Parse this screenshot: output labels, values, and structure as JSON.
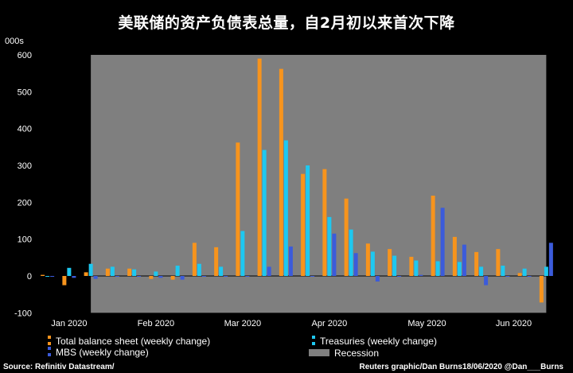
{
  "title": "美联储的资产负债表总量，自2月初以来首次下降",
  "unit_label": "000s",
  "source": "Source: Refinitiv Datastream/",
  "credit": "Reuters graphic/Dan Burns18/06/2020 @Dan___Burns",
  "legend": {
    "total": "Total balance sheet (weekly change)",
    "treasuries": "Treasuries (weekly change)",
    "mbs": "MBS (weekly change)",
    "recession": "Recession"
  },
  "colors": {
    "total": "#f7941d",
    "treasuries": "#1ec8f0",
    "mbs": "#3b5bdb",
    "recession": "#7f7f7f",
    "background": "#000000"
  },
  "chart_data": {
    "type": "bar",
    "ylim": [
      -100,
      600
    ],
    "yticks": [
      -100,
      0,
      100,
      200,
      300,
      400,
      500,
      600
    ],
    "xlabels": [
      "Jan 2020",
      "Feb 2020",
      "Mar 2020",
      "Apr 2020",
      "May 2020",
      "Jun 2020"
    ],
    "xlabel_weeks": [
      1.5,
      5.5,
      9.5,
      13.5,
      18,
      22
    ],
    "recession_weeks": [
      2.5,
      23.5
    ],
    "weeks": 24,
    "series": [
      {
        "name": "Total balance sheet (weekly change)",
        "key": "total",
        "values": [
          3,
          -25,
          10,
          20,
          20,
          -8,
          -10,
          90,
          78,
          362,
          590,
          562,
          277,
          290,
          210,
          88,
          73,
          52,
          218,
          106,
          65,
          73,
          8,
          -72
        ]
      },
      {
        "name": "Treasuries (weekly change)",
        "key": "treasuries",
        "values": [
          0,
          22,
          33,
          25,
          18,
          12,
          28,
          33,
          25,
          122,
          342,
          368,
          300,
          160,
          126,
          66,
          55,
          42,
          40,
          38,
          25,
          28,
          20,
          25
        ]
      },
      {
        "name": "MBS (weekly change)",
        "key": "mbs",
        "values": [
          0,
          -5,
          -8,
          0,
          0,
          -5,
          -10,
          0,
          0,
          0,
          25,
          80,
          0,
          115,
          62,
          -15,
          0,
          3,
          185,
          85,
          -25,
          0,
          0,
          90
        ]
      }
    ]
  }
}
